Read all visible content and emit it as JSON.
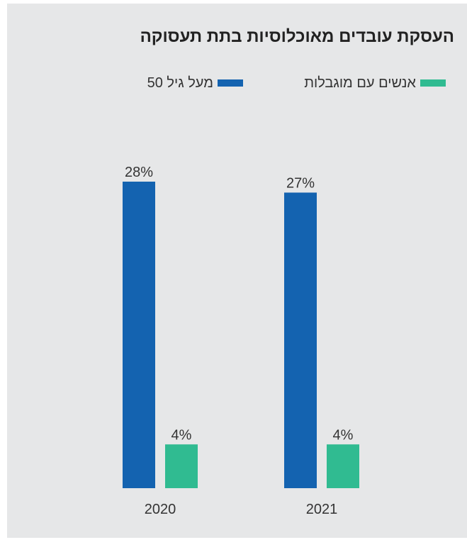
{
  "title": "העסקת עובדים מאוכלוסיות בתת תעסוקה",
  "colors": {
    "over50": "#1463b0",
    "disabilities": "#30bb91",
    "background": "#e6e7e8"
  },
  "legend": [
    {
      "label": "אנשים עם מוגבלות",
      "color": "#30bb91"
    },
    {
      "label": "מעל גיל 50",
      "color": "#1463b0"
    }
  ],
  "chart_data": {
    "type": "bar",
    "title": "העסקת עובדים מאוכלוסיות בתת תעסוקה",
    "categories": [
      "2020",
      "2021"
    ],
    "series": [
      {
        "name": "מעל גיל 50",
        "values": [
          28,
          27
        ],
        "labels": [
          "28%",
          "27%"
        ],
        "color": "#1463b0"
      },
      {
        "name": "אנשים עם מוגבלות",
        "values": [
          4,
          4
        ],
        "labels": [
          "4%",
          "4%"
        ],
        "color": "#30bb91"
      }
    ],
    "ylim": [
      0,
      28
    ],
    "xlabel": "",
    "ylabel": "",
    "grid": false,
    "legend_position": "top"
  }
}
